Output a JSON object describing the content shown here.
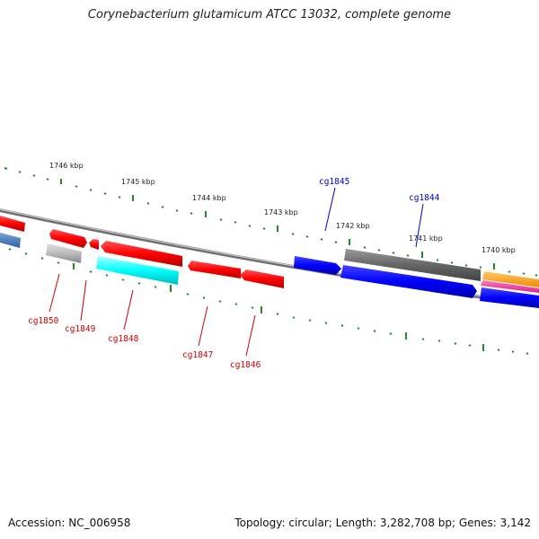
{
  "title": "Corynebacterium glutamicum ATCC 13032, complete genome",
  "footer": {
    "accession": "Accession: NC_006958",
    "summary": "Topology: circular; Length: 3,282,708 bp; Genes: 3,142"
  },
  "colors": {
    "backbone": "#808080",
    "tick": "#228b22",
    "gene_red": "#ff0000",
    "gene_blue": "#0000ff",
    "gene_cyan": "#00ffff",
    "gene_gray": "#bbbbbb",
    "gene_darkgray": "#666666",
    "gene_orange": "#ff9900",
    "gene_magenta": "#ff3399",
    "gene_steelblue": "#4a7fbf",
    "label_red": "#cc0000",
    "label_blue": "#0000cc"
  },
  "ruler_labels": [
    "1746 kbp",
    "1745 kbp",
    "1744 kbp",
    "1743 kbp",
    "1742 kbp",
    "1741 kbp",
    "1740 kbp"
  ],
  "gene_labels": [
    {
      "text": "cg1850",
      "strand": "reverse"
    },
    {
      "text": "cg1849",
      "strand": "reverse"
    },
    {
      "text": "cg1848",
      "strand": "reverse"
    },
    {
      "text": "cg1847",
      "strand": "reverse"
    },
    {
      "text": "cg1846",
      "strand": "reverse"
    },
    {
      "text": "cg1845",
      "strand": "forward"
    },
    {
      "text": "cg1844",
      "strand": "forward"
    }
  ]
}
